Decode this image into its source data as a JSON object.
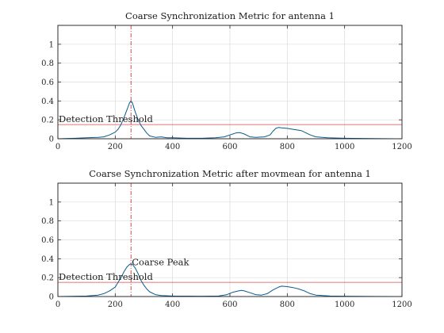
{
  "colors": {
    "metric": "#0b5a8c",
    "threshold": "#d84a4a",
    "peak": "#c23b3b"
  },
  "chart_data": [
    {
      "type": "line",
      "title": "Coarse Synchronization Metric for antenna 1",
      "xlabel": "",
      "ylabel": "",
      "xlim": [
        0,
        1200
      ],
      "ylim": [
        0,
        1.2
      ],
      "xticks": [
        0,
        200,
        400,
        600,
        800,
        1000,
        1200
      ],
      "yticks": [
        0,
        0.2,
        0.4,
        0.6,
        0.8,
        1
      ],
      "xtick_labels": [
        "0",
        "200",
        "400",
        "600",
        "800",
        "1000",
        "1200"
      ],
      "ytick_labels": [
        "0",
        "0.2",
        "0.4",
        "0.6",
        "0.8",
        "1"
      ],
      "grid": true,
      "series": [
        {
          "x": [
            0,
            60,
            100,
            140,
            160,
            180,
            200,
            210,
            220,
            230,
            240,
            245,
            250,
            255,
            260,
            265,
            270,
            280,
            290,
            300,
            310,
            320,
            340,
            360,
            380,
            400,
            450,
            500,
            550,
            580,
            600,
            610,
            620,
            630,
            640,
            650,
            660,
            670,
            690,
            720,
            740,
            750,
            760,
            770,
            780,
            800,
            820,
            840,
            850,
            860,
            880,
            900,
            940,
            1000,
            1100,
            1180
          ],
          "y": [
            0,
            0.005,
            0.01,
            0.015,
            0.02,
            0.04,
            0.07,
            0.1,
            0.15,
            0.22,
            0.3,
            0.34,
            0.38,
            0.4,
            0.38,
            0.33,
            0.28,
            0.2,
            0.14,
            0.1,
            0.06,
            0.03,
            0.015,
            0.02,
            0.01,
            0.01,
            0.005,
            0.005,
            0.01,
            0.02,
            0.04,
            0.05,
            0.06,
            0.065,
            0.06,
            0.05,
            0.035,
            0.02,
            0.015,
            0.02,
            0.04,
            0.08,
            0.11,
            0.12,
            0.115,
            0.11,
            0.1,
            0.09,
            0.085,
            0.07,
            0.04,
            0.02,
            0.01,
            0.005,
            0.002,
            0
          ]
        }
      ],
      "threshold": 0.15,
      "threshold_label": "Detection Threshold",
      "peak_x": 255,
      "peak_label": ""
    },
    {
      "type": "line",
      "title": "Coarse Synchronization Metric after movmean for antenna 1",
      "xlabel": "",
      "ylabel": "",
      "xlim": [
        0,
        1200
      ],
      "ylim": [
        0,
        1.2
      ],
      "xticks": [
        0,
        200,
        400,
        600,
        800,
        1000,
        1200
      ],
      "yticks": [
        0,
        0.2,
        0.4,
        0.6,
        0.8,
        1
      ],
      "xtick_labels": [
        "0",
        "200",
        "400",
        "600",
        "800",
        "1000",
        "1200"
      ],
      "ytick_labels": [
        "0",
        "0.2",
        "0.4",
        "0.6",
        "0.8",
        "1"
      ],
      "grid": true,
      "series": [
        {
          "x": [
            0,
            100,
            140,
            160,
            180,
            200,
            210,
            220,
            230,
            240,
            250,
            255,
            260,
            270,
            280,
            290,
            300,
            310,
            320,
            340,
            360,
            400,
            500,
            560,
            590,
            610,
            630,
            640,
            650,
            670,
            690,
            710,
            730,
            750,
            770,
            780,
            800,
            820,
            840,
            860,
            880,
            900,
            950,
            1000,
            1100,
            1180
          ],
          "y": [
            0,
            0.005,
            0.015,
            0.03,
            0.06,
            0.1,
            0.15,
            0.2,
            0.26,
            0.31,
            0.34,
            0.345,
            0.34,
            0.3,
            0.24,
            0.17,
            0.12,
            0.08,
            0.05,
            0.02,
            0.01,
            0.005,
            0.003,
            0.005,
            0.02,
            0.045,
            0.06,
            0.065,
            0.06,
            0.04,
            0.02,
            0.015,
            0.03,
            0.07,
            0.1,
            0.11,
            0.105,
            0.095,
            0.08,
            0.06,
            0.03,
            0.015,
            0.005,
            0.003,
            0.001,
            0
          ]
        }
      ],
      "threshold": 0.15,
      "threshold_label": "Detection Threshold",
      "peak_x": 255,
      "peak_label": "Coarse Peak"
    }
  ]
}
